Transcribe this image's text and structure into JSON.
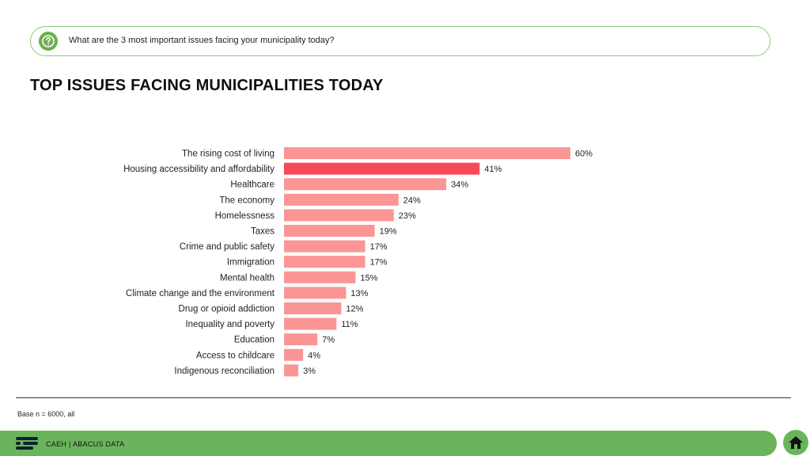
{
  "question": {
    "text": "What are the 3 most important issues facing your municipality today?",
    "icon": "question-icon"
  },
  "title": "TOP ISSUES FACING MUNICIPALITIES TODAY",
  "base_note": "Base n = 6000, all",
  "footer": {
    "text": "CAEH  |  ABACUS DATA",
    "logo_icon": "abacus-logo-icon",
    "home_icon": "home-icon"
  },
  "colors": {
    "accent_green": "#6ab55c",
    "bar": "#fb9596",
    "bar_highlight": "#f54b59"
  },
  "chart_data": {
    "type": "bar",
    "orientation": "horizontal",
    "categories": [
      "The rising cost of living",
      "Housing accessibility and affordability",
      "Healthcare",
      "The economy",
      "Homelessness",
      "Taxes",
      "Crime and public safety",
      "Immigration",
      "Mental health",
      "Climate change and the environment",
      "Drug or opioid addiction",
      "Inequality and poverty",
      "Education",
      "Access to childcare",
      "Indigenous reconciliation"
    ],
    "values": [
      60,
      41,
      34,
      24,
      23,
      19,
      17,
      17,
      15,
      13,
      12,
      11,
      7,
      4,
      3
    ],
    "value_labels": [
      "60%",
      "41%",
      "34%",
      "24%",
      "23%",
      "19%",
      "17%",
      "17%",
      "15%",
      "13%",
      "12%",
      "11%",
      "7%",
      "4%",
      "3%"
    ],
    "highlight_index": 1,
    "xlim": [
      0,
      60
    ],
    "grid": false,
    "legend": "none"
  }
}
